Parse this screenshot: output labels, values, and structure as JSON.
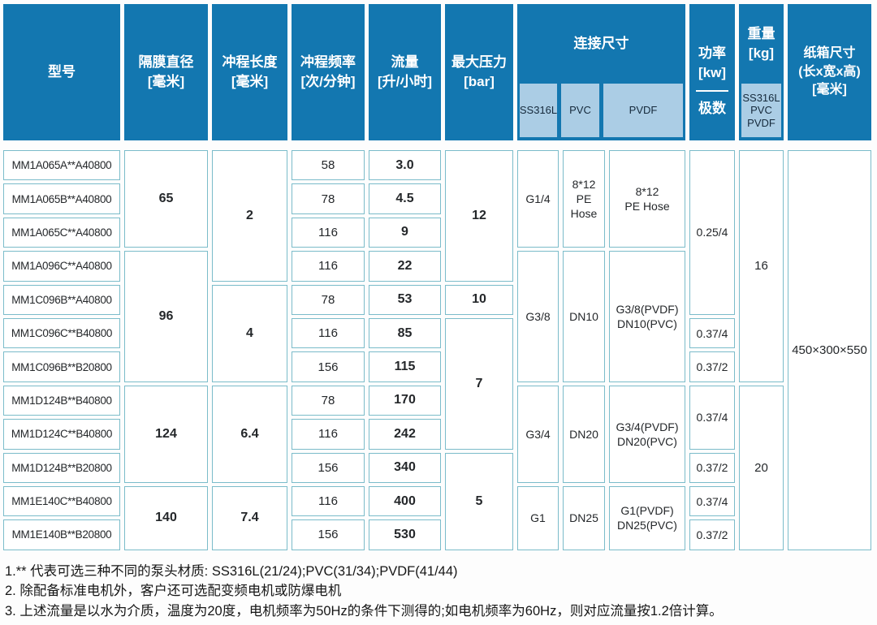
{
  "colors": {
    "header_blue": "#1377b0",
    "subheader_light": "#abcde5",
    "cell_border": "#7bbcca",
    "header_text": "#ffffff",
    "body_text": "#24272a"
  },
  "header": {
    "model": "型号",
    "diaphragm": "隔膜直径\n[毫米]",
    "stroke_length": "冲程长度\n[毫米]",
    "stroke_frequency": "冲程频率\n[次/分钟]",
    "flow": "流量\n[升/小时]",
    "max_pressure": "最大压力\n[bar]",
    "connection": {
      "label": "连接尺寸",
      "subs": [
        "SS316L",
        "PVC",
        "PVDF"
      ]
    },
    "power": {
      "label": "功率\n[kw]",
      "sub": "极数"
    },
    "weight": {
      "label": "重量\n[kg]",
      "sub": "SS316L\nPVC\nPVDF"
    },
    "carton": "纸箱尺寸\n(长x宽x高)\n[毫米]"
  },
  "column_names": [
    "model",
    "diaphragm-diameter",
    "stroke-length",
    "stroke-frequency",
    "flow-rate",
    "max-pressure",
    "conn-ss316l",
    "conn-pvc",
    "conn-pvdf",
    "power",
    "weight",
    "carton-size"
  ],
  "cells": [
    {
      "c": 1,
      "r": 1,
      "rs": 1,
      "t": "MM1A065A**A40800",
      "cls": "model"
    },
    {
      "c": 1,
      "r": 2,
      "rs": 1,
      "t": "MM1A065B**A40800",
      "cls": "model"
    },
    {
      "c": 1,
      "r": 3,
      "rs": 1,
      "t": "MM1A065C**A40800",
      "cls": "model"
    },
    {
      "c": 1,
      "r": 4,
      "rs": 1,
      "t": "MM1A096C**A40800",
      "cls": "model"
    },
    {
      "c": 1,
      "r": 5,
      "rs": 1,
      "t": "MM1C096B**A40800",
      "cls": "model"
    },
    {
      "c": 1,
      "r": 6,
      "rs": 1,
      "t": "MM1C096C**B40800",
      "cls": "model"
    },
    {
      "c": 1,
      "r": 7,
      "rs": 1,
      "t": "MM1C096B**B20800",
      "cls": "model"
    },
    {
      "c": 1,
      "r": 8,
      "rs": 1,
      "t": "MM1D124B**B40800",
      "cls": "model"
    },
    {
      "c": 1,
      "r": 9,
      "rs": 1,
      "t": "MM1D124C**B40800",
      "cls": "model"
    },
    {
      "c": 1,
      "r": 10,
      "rs": 1,
      "t": "MM1D124B**B20800",
      "cls": "model"
    },
    {
      "c": 1,
      "r": 11,
      "rs": 1,
      "t": "MM1E140C**B40800",
      "cls": "model"
    },
    {
      "c": 1,
      "r": 12,
      "rs": 1,
      "t": "MM1E140B**B20800",
      "cls": "model"
    },
    {
      "c": 2,
      "r": 1,
      "rs": 3,
      "t": "65",
      "cls": "big"
    },
    {
      "c": 2,
      "r": 4,
      "rs": 4,
      "t": "96",
      "cls": "big"
    },
    {
      "c": 2,
      "r": 8,
      "rs": 3,
      "t": "124",
      "cls": "big"
    },
    {
      "c": 2,
      "r": 11,
      "rs": 2,
      "t": "140",
      "cls": "big"
    },
    {
      "c": 3,
      "r": 1,
      "rs": 4,
      "t": "2",
      "cls": "big"
    },
    {
      "c": 3,
      "r": 5,
      "rs": 3,
      "t": "4",
      "cls": "big"
    },
    {
      "c": 3,
      "r": 8,
      "rs": 3,
      "t": "6.4",
      "cls": "big"
    },
    {
      "c": 3,
      "r": 11,
      "rs": 2,
      "t": "7.4",
      "cls": "big"
    },
    {
      "c": 4,
      "r": 1,
      "rs": 1,
      "t": "58",
      "cls": "num"
    },
    {
      "c": 4,
      "r": 2,
      "rs": 1,
      "t": "78",
      "cls": "num"
    },
    {
      "c": 4,
      "r": 3,
      "rs": 1,
      "t": "116",
      "cls": "num"
    },
    {
      "c": 4,
      "r": 4,
      "rs": 1,
      "t": "116",
      "cls": "num"
    },
    {
      "c": 4,
      "r": 5,
      "rs": 1,
      "t": "78",
      "cls": "num"
    },
    {
      "c": 4,
      "r": 6,
      "rs": 1,
      "t": "116",
      "cls": "num"
    },
    {
      "c": 4,
      "r": 7,
      "rs": 1,
      "t": "156",
      "cls": "num"
    },
    {
      "c": 4,
      "r": 8,
      "rs": 1,
      "t": "78",
      "cls": "num"
    },
    {
      "c": 4,
      "r": 9,
      "rs": 1,
      "t": "116",
      "cls": "num"
    },
    {
      "c": 4,
      "r": 10,
      "rs": 1,
      "t": "156",
      "cls": "num"
    },
    {
      "c": 4,
      "r": 11,
      "rs": 1,
      "t": "116",
      "cls": "num"
    },
    {
      "c": 4,
      "r": 12,
      "rs": 1,
      "t": "156",
      "cls": "num"
    },
    {
      "c": 5,
      "r": 1,
      "rs": 1,
      "t": "3.0",
      "cls": "big"
    },
    {
      "c": 5,
      "r": 2,
      "rs": 1,
      "t": "4.5",
      "cls": "big"
    },
    {
      "c": 5,
      "r": 3,
      "rs": 1,
      "t": "9",
      "cls": "big"
    },
    {
      "c": 5,
      "r": 4,
      "rs": 1,
      "t": "22",
      "cls": "big"
    },
    {
      "c": 5,
      "r": 5,
      "rs": 1,
      "t": "53",
      "cls": "big"
    },
    {
      "c": 5,
      "r": 6,
      "rs": 1,
      "t": "85",
      "cls": "big"
    },
    {
      "c": 5,
      "r": 7,
      "rs": 1,
      "t": "115",
      "cls": "big"
    },
    {
      "c": 5,
      "r": 8,
      "rs": 1,
      "t": "170",
      "cls": "big"
    },
    {
      "c": 5,
      "r": 9,
      "rs": 1,
      "t": "242",
      "cls": "big"
    },
    {
      "c": 5,
      "r": 10,
      "rs": 1,
      "t": "340",
      "cls": "big"
    },
    {
      "c": 5,
      "r": 11,
      "rs": 1,
      "t": "400",
      "cls": "big"
    },
    {
      "c": 5,
      "r": 12,
      "rs": 1,
      "t": "530",
      "cls": "big"
    },
    {
      "c": 6,
      "r": 1,
      "rs": 4,
      "t": "12",
      "cls": "big"
    },
    {
      "c": 6,
      "r": 5,
      "rs": 1,
      "t": "10",
      "cls": "big"
    },
    {
      "c": 6,
      "r": 6,
      "rs": 4,
      "t": "7",
      "cls": "big"
    },
    {
      "c": 6,
      "r": 10,
      "rs": 3,
      "t": "5",
      "cls": "big"
    },
    {
      "c": 7,
      "r": 1,
      "rs": 3,
      "t": "G1/4",
      "cls": "conn"
    },
    {
      "c": 7,
      "r": 4,
      "rs": 4,
      "t": "G3/8",
      "cls": "conn"
    },
    {
      "c": 7,
      "r": 8,
      "rs": 3,
      "t": "G3/4",
      "cls": "conn"
    },
    {
      "c": 7,
      "r": 11,
      "rs": 2,
      "t": "G1",
      "cls": "conn"
    },
    {
      "c": 8,
      "r": 1,
      "rs": 3,
      "t": "8*12\nPE\nHose",
      "cls": "conn"
    },
    {
      "c": 8,
      "r": 4,
      "rs": 4,
      "t": "DN10",
      "cls": "conn"
    },
    {
      "c": 8,
      "r": 8,
      "rs": 3,
      "t": "DN20",
      "cls": "conn"
    },
    {
      "c": 8,
      "r": 11,
      "rs": 2,
      "t": "DN25",
      "cls": "conn"
    },
    {
      "c": 9,
      "r": 1,
      "rs": 3,
      "t": "8*12\nPE Hose",
      "cls": "conn"
    },
    {
      "c": 9,
      "r": 4,
      "rs": 4,
      "t": "G3/8(PVDF)\nDN10(PVC)",
      "cls": "conn"
    },
    {
      "c": 9,
      "r": 8,
      "rs": 3,
      "t": "G3/4(PVDF)\nDN20(PVC)",
      "cls": "conn"
    },
    {
      "c": 9,
      "r": 11,
      "rs": 2,
      "t": "G1(PVDF)\nDN25(PVC)",
      "cls": "conn"
    },
    {
      "c": 10,
      "r": 1,
      "rs": 5,
      "t": "0.25/4",
      "cls": "conn"
    },
    {
      "c": 10,
      "r": 6,
      "rs": 1,
      "t": "0.37/4",
      "cls": "conn"
    },
    {
      "c": 10,
      "r": 7,
      "rs": 1,
      "t": "0.37/2",
      "cls": "conn"
    },
    {
      "c": 10,
      "r": 8,
      "rs": 2,
      "t": "0.37/4",
      "cls": "conn"
    },
    {
      "c": 10,
      "r": 10,
      "rs": 1,
      "t": "0.37/2",
      "cls": "conn"
    },
    {
      "c": 10,
      "r": 11,
      "rs": 1,
      "t": "0.37/4",
      "cls": "conn"
    },
    {
      "c": 10,
      "r": 12,
      "rs": 1,
      "t": "0.37/2",
      "cls": "conn"
    },
    {
      "c": 11,
      "r": 1,
      "rs": 7,
      "t": "16",
      "cls": "num"
    },
    {
      "c": 11,
      "r": 8,
      "rs": 5,
      "t": "20",
      "cls": "num"
    },
    {
      "c": 12,
      "r": 1,
      "rs": 12,
      "t": "450×300×550",
      "cls": "num"
    }
  ],
  "notes": [
    "1.** 代表可选三种不同的泵头材质: SS316L(21/24);PVC(31/34);PVDF(41/44)",
    "2. 除配备标准电机外，客户还可选配变频电机或防爆电机",
    "3. 上述流量是以水为介质，温度为20度，电机频率为50Hz的条件下测得的;如电机频率为60Hz，则对应流量按1.2倍计算。"
  ]
}
